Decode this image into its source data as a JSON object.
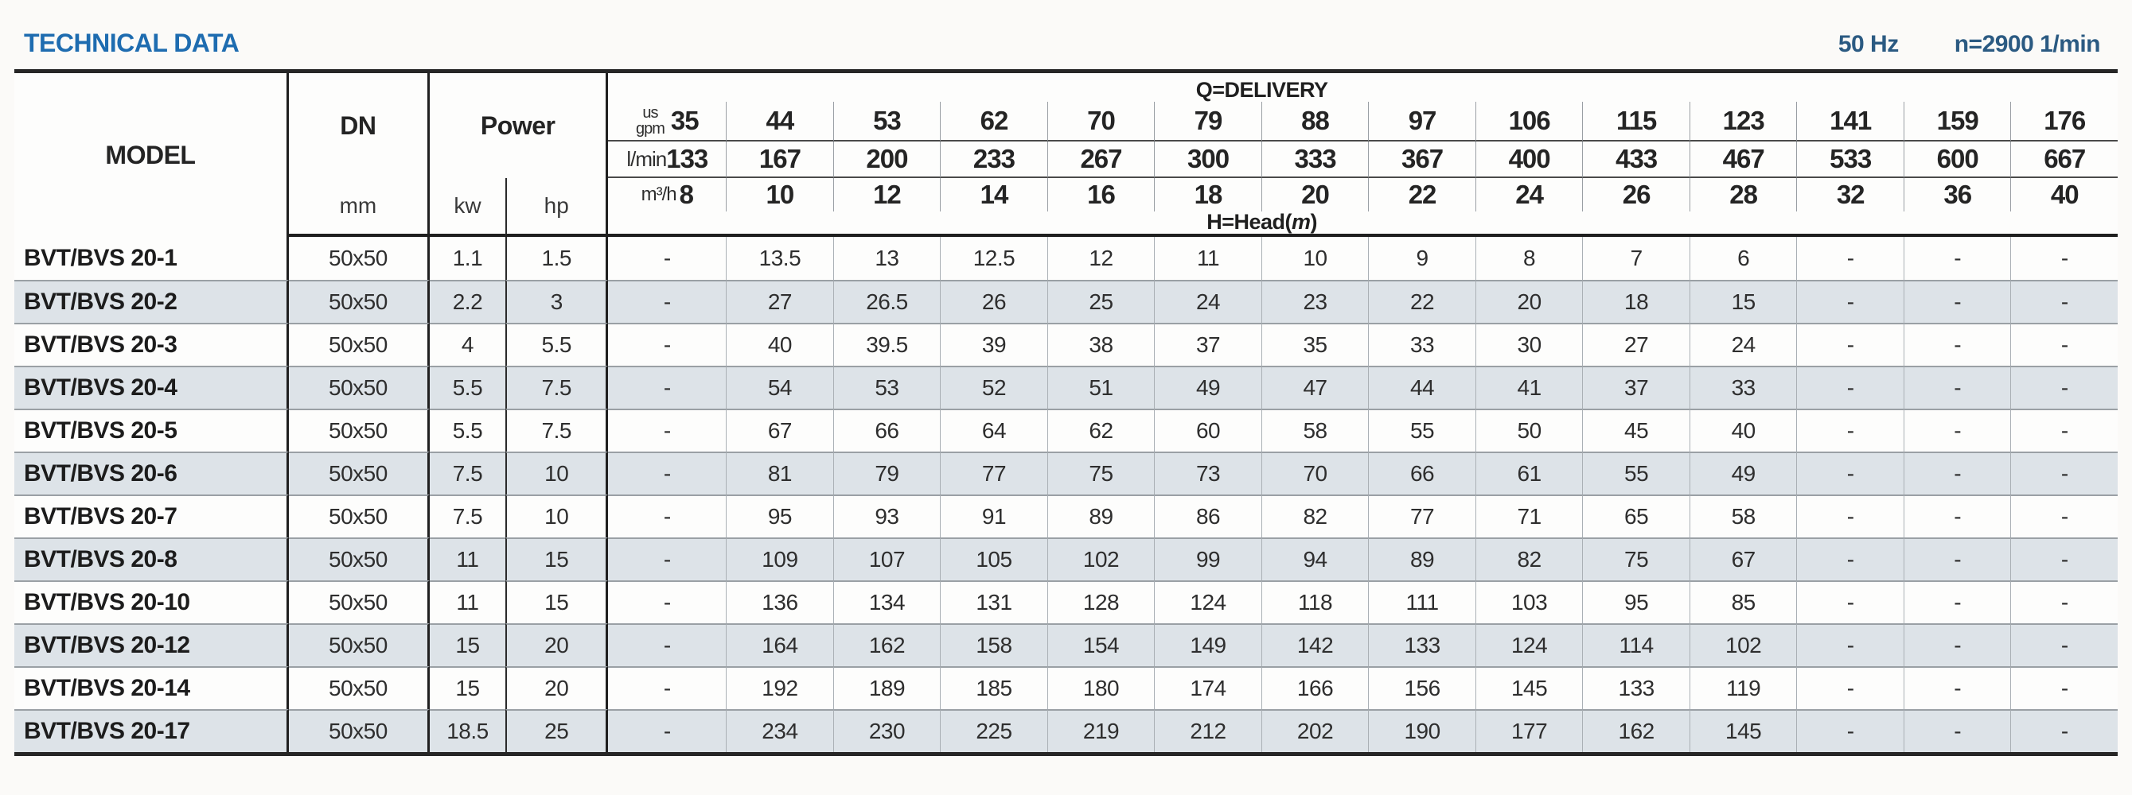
{
  "header": {
    "title": "TECHNICAL DATA",
    "frequency": "50 Hz",
    "speed": "n=2900 1/min"
  },
  "colors": {
    "title_blue": "#1e6cb0",
    "spec_blue": "#2b5a82",
    "alt_row": "#dde3e8",
    "border_dark": "#262626"
  },
  "table": {
    "model_header": "MODEL",
    "dn_header": "DN",
    "dn_unit": "mm",
    "power_header": "Power",
    "power_units": [
      "kw",
      "hp"
    ],
    "delivery_label": "Q=DELIVERY",
    "head_label_prefix": "H=Head(",
    "head_label_italic": "m",
    "head_label_suffix": ")",
    "units": {
      "gpm_top": "us",
      "gpm_bottom": "gpm",
      "lmin": "l/min",
      "m3h": "m³/h"
    },
    "delivery": {
      "us_gpm": [
        "35",
        "44",
        "53",
        "62",
        "70",
        "79",
        "88",
        "97",
        "106",
        "115",
        "123",
        "141",
        "159",
        "176"
      ],
      "l_min": [
        "133",
        "167",
        "200",
        "233",
        "267",
        "300",
        "333",
        "367",
        "400",
        "433",
        "467",
        "533",
        "600",
        "667"
      ],
      "m3_h": [
        "8",
        "10",
        "12",
        "14",
        "16",
        "18",
        "20",
        "22",
        "24",
        "26",
        "28",
        "32",
        "36",
        "40"
      ]
    },
    "rows": [
      {
        "model": "BVT/BVS 20-1",
        "dn": "50x50",
        "kw": "1.1",
        "hp": "1.5",
        "head": [
          "-",
          "13.5",
          "13",
          "12.5",
          "12",
          "11",
          "10",
          "9",
          "8",
          "7",
          "6",
          "-",
          "-",
          "-"
        ]
      },
      {
        "model": "BVT/BVS 20-2",
        "dn": "50x50",
        "kw": "2.2",
        "hp": "3",
        "head": [
          "-",
          "27",
          "26.5",
          "26",
          "25",
          "24",
          "23",
          "22",
          "20",
          "18",
          "15",
          "-",
          "-",
          "-"
        ]
      },
      {
        "model": "BVT/BVS 20-3",
        "dn": "50x50",
        "kw": "4",
        "hp": "5.5",
        "head": [
          "-",
          "40",
          "39.5",
          "39",
          "38",
          "37",
          "35",
          "33",
          "30",
          "27",
          "24",
          "-",
          "-",
          "-"
        ]
      },
      {
        "model": "BVT/BVS 20-4",
        "dn": "50x50",
        "kw": "5.5",
        "hp": "7.5",
        "head": [
          "-",
          "54",
          "53",
          "52",
          "51",
          "49",
          "47",
          "44",
          "41",
          "37",
          "33",
          "-",
          "-",
          "-"
        ]
      },
      {
        "model": "BVT/BVS 20-5",
        "dn": "50x50",
        "kw": "5.5",
        "hp": "7.5",
        "head": [
          "-",
          "67",
          "66",
          "64",
          "62",
          "60",
          "58",
          "55",
          "50",
          "45",
          "40",
          "-",
          "-",
          "-"
        ]
      },
      {
        "model": "BVT/BVS 20-6",
        "dn": "50x50",
        "kw": "7.5",
        "hp": "10",
        "head": [
          "-",
          "81",
          "79",
          "77",
          "75",
          "73",
          "70",
          "66",
          "61",
          "55",
          "49",
          "-",
          "-",
          "-"
        ]
      },
      {
        "model": "BVT/BVS 20-7",
        "dn": "50x50",
        "kw": "7.5",
        "hp": "10",
        "head": [
          "-",
          "95",
          "93",
          "91",
          "89",
          "86",
          "82",
          "77",
          "71",
          "65",
          "58",
          "-",
          "-",
          "-"
        ]
      },
      {
        "model": "BVT/BVS 20-8",
        "dn": "50x50",
        "kw": "11",
        "hp": "15",
        "head": [
          "-",
          "109",
          "107",
          "105",
          "102",
          "99",
          "94",
          "89",
          "82",
          "75",
          "67",
          "-",
          "-",
          "-"
        ]
      },
      {
        "model": "BVT/BVS 20-10",
        "dn": "50x50",
        "kw": "11",
        "hp": "15",
        "head": [
          "-",
          "136",
          "134",
          "131",
          "128",
          "124",
          "118",
          "111",
          "103",
          "95",
          "85",
          "-",
          "-",
          "-"
        ]
      },
      {
        "model": "BVT/BVS 20-12",
        "dn": "50x50",
        "kw": "15",
        "hp": "20",
        "head": [
          "-",
          "164",
          "162",
          "158",
          "154",
          "149",
          "142",
          "133",
          "124",
          "114",
          "102",
          "-",
          "-",
          "-"
        ]
      },
      {
        "model": "BVT/BVS 20-14",
        "dn": "50x50",
        "kw": "15",
        "hp": "20",
        "head": [
          "-",
          "192",
          "189",
          "185",
          "180",
          "174",
          "166",
          "156",
          "145",
          "133",
          "119",
          "-",
          "-",
          "-"
        ]
      },
      {
        "model": "BVT/BVS 20-17",
        "dn": "50x50",
        "kw": "18.5",
        "hp": "25",
        "head": [
          "-",
          "234",
          "230",
          "225",
          "219",
          "212",
          "202",
          "190",
          "177",
          "162",
          "145",
          "-",
          "-",
          "-"
        ]
      }
    ]
  }
}
